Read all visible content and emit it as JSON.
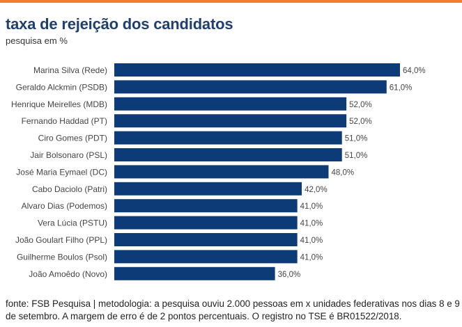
{
  "header": {
    "title": "taxa de rejeição dos candidatos",
    "subtitle": "pesquisa em %"
  },
  "footer": {
    "source": "fonte: FSB Pesquisa | metodologia: a pesquisa ouviu 2.000 pessoas em x unidades federativas nos dias 8 e 9 de setembro. A margem de erro é de 2 pontos percentuais. O registro no TSE é BR01522/2018."
  },
  "colors": {
    "bar": "#0d3b78",
    "accent": "#f07d2b",
    "title": "#1f3f6e"
  },
  "chart_data": {
    "type": "bar",
    "orientation": "horizontal",
    "title": "taxa de rejeição dos candidatos",
    "xlabel": "",
    "ylabel": "",
    "xlim": [
      0,
      64
    ],
    "grid": false,
    "categories": [
      "Marina Silva (Rede)",
      "Geraldo Alckmin (PSDB)",
      "Henrique Meirelles (MDB)",
      "Fernando Haddad (PT)",
      "Ciro Gomes (PDT)",
      "Jair Bolsonaro (PSL)",
      "José Maria Eymael (DC)",
      "Cabo Daciolo (Patri)",
      "Alvaro Dias (Podemos)",
      "Vera Lúcia (PSTU)",
      "João Goulart Filho (PPL)",
      "Guilherme Boulos (Psol)",
      "João Amoêdo (Novo)"
    ],
    "values": [
      64,
      61,
      52,
      52,
      51,
      51,
      48,
      42,
      41,
      41,
      41,
      41,
      36
    ],
    "value_labels": [
      "64,0%",
      "61,0%",
      "52,0%",
      "52,0%",
      "51,0%",
      "51,0%",
      "48,0%",
      "42,0%",
      "41,0%",
      "41,0%",
      "41,0%",
      "41,0%",
      "36,0%"
    ]
  }
}
